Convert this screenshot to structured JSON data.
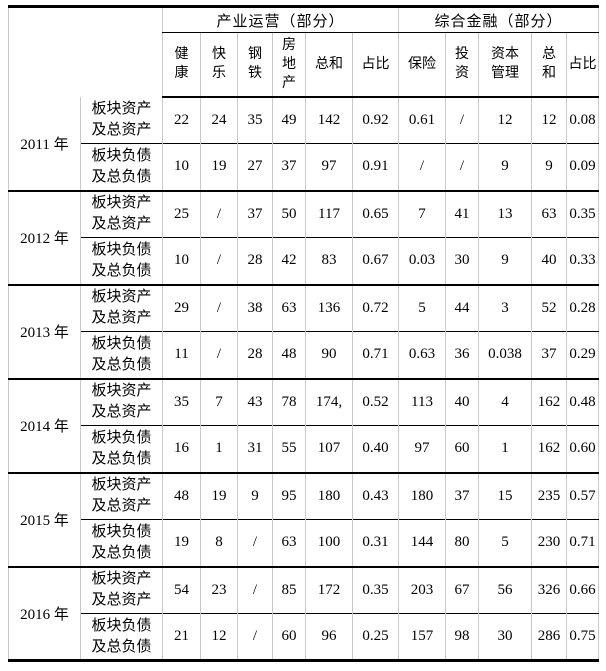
{
  "table": {
    "group_headers": [
      {
        "label": "产业运营（部分）",
        "span": 6
      },
      {
        "label": "综合金融（部分）",
        "span": 5
      }
    ],
    "columns": [
      {
        "id": "health",
        "label": "健\n康"
      },
      {
        "id": "happiness",
        "label": "快\n乐"
      },
      {
        "id": "steel",
        "label": "钢\n铁"
      },
      {
        "id": "real-estate",
        "label": "房\n地\n产"
      },
      {
        "id": "sum-industry",
        "label": "总和"
      },
      {
        "id": "ratio-industry",
        "label": "占比"
      },
      {
        "id": "insurance",
        "label": "保险"
      },
      {
        "id": "investment",
        "label": "投\n资"
      },
      {
        "id": "capital-management",
        "label": "资本\n管理"
      },
      {
        "id": "sum-finance",
        "label": "总\n和"
      },
      {
        "id": "ratio-finance",
        "label": "占比"
      }
    ],
    "row_labels": {
      "assets": "板块资产\n及总资产",
      "liabilities": "板块负债\n及总负债"
    },
    "years": [
      {
        "year": "2011 年",
        "assets": [
          "22",
          "24",
          "35",
          "49",
          "142",
          "0.92",
          "0.61",
          "/",
          "12",
          "12",
          "0.08"
        ],
        "liabilities": [
          "10",
          "19",
          "27",
          "37",
          "97",
          "0.91",
          "/",
          "/",
          "9",
          "9",
          "0.09"
        ]
      },
      {
        "year": "2012 年",
        "assets": [
          "25",
          "/",
          "37",
          "50",
          "117",
          "0.65",
          "7",
          "41",
          "13",
          "63",
          "0.35"
        ],
        "liabilities": [
          "10",
          "/",
          "28",
          "42",
          "83",
          "0.67",
          "0.03",
          "30",
          "9",
          "40",
          "0.33"
        ]
      },
      {
        "year": "2013 年",
        "assets": [
          "29",
          "/",
          "38",
          "63",
          "136",
          "0.72",
          "5",
          "44",
          "3",
          "52",
          "0.28"
        ],
        "liabilities": [
          "11",
          "/",
          "28",
          "48",
          "90",
          "0.71",
          "0.63",
          "36",
          "0.038",
          "37",
          "0.29"
        ]
      },
      {
        "year": "2014 年",
        "assets": [
          "35",
          "7",
          "43",
          "78",
          "174,",
          "0.52",
          "113",
          "40",
          "4",
          "162",
          "0.48"
        ],
        "liabilities": [
          "16",
          "1",
          "31",
          "55",
          "107",
          "0.40",
          "97",
          "60",
          "1",
          "162",
          "0.60"
        ]
      },
      {
        "year": "2015 年",
        "assets": [
          "48",
          "19",
          "9",
          "95",
          "180",
          "0.43",
          "180",
          "37",
          "15",
          "235",
          "0.57"
        ],
        "liabilities": [
          "19",
          "8",
          "/",
          "63",
          "100",
          "0.31",
          "144",
          "80",
          "5",
          "230",
          "0.71"
        ]
      },
      {
        "year": "2016 年",
        "assets": [
          "54",
          "23",
          "/",
          "85",
          "172",
          "0.35",
          "203",
          "67",
          "56",
          "326",
          "0.66"
        ],
        "liabilities": [
          "21",
          "12",
          "/",
          "60",
          "96",
          "0.25",
          "157",
          "98",
          "30",
          "286",
          "0.75"
        ]
      }
    ]
  }
}
